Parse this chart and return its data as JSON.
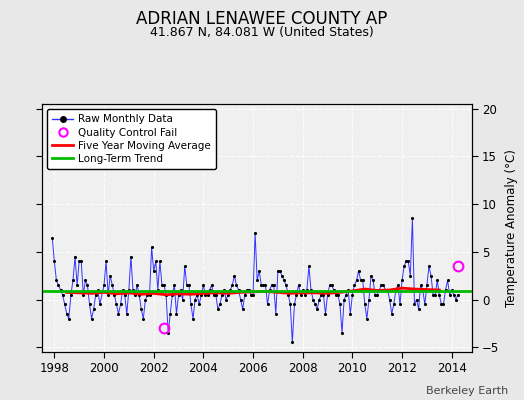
{
  "title": "ADRIAN LENAWEE COUNTY AP",
  "subtitle": "41.867 N, 84.081 W (United States)",
  "ylabel": "Temperature Anomaly (°C)",
  "footer": "Berkeley Earth",
  "ylim": [
    -5.5,
    20.5
  ],
  "yticks": [
    -5,
    0,
    5,
    10,
    15,
    20
  ],
  "xlim": [
    1997.5,
    2014.8
  ],
  "xticks": [
    1998,
    2000,
    2002,
    2004,
    2006,
    2008,
    2010,
    2012,
    2014
  ],
  "bg_color": "#e8e8e8",
  "plot_bg_color": "#f0f0f0",
  "grid_color": "#d0d0d0",
  "raw_color": "#3333ff",
  "ma_color": "#ff0000",
  "trend_color": "#00bb00",
  "qc_fail_color": "#ff00ff",
  "trend_value": 0.85,
  "raw_data": [
    [
      1997.917,
      6.5
    ],
    [
      1998.0,
      4.0
    ],
    [
      1998.083,
      2.0
    ],
    [
      1998.167,
      1.5
    ],
    [
      1998.25,
      1.0
    ],
    [
      1998.333,
      0.5
    ],
    [
      1998.417,
      -0.5
    ],
    [
      1998.5,
      -1.5
    ],
    [
      1998.583,
      -2.0
    ],
    [
      1998.667,
      0.5
    ],
    [
      1998.75,
      2.0
    ],
    [
      1998.833,
      4.5
    ],
    [
      1998.917,
      1.5
    ],
    [
      1999.0,
      4.0
    ],
    [
      1999.083,
      4.0
    ],
    [
      1999.167,
      0.5
    ],
    [
      1999.25,
      2.0
    ],
    [
      1999.333,
      1.5
    ],
    [
      1999.417,
      -0.5
    ],
    [
      1999.5,
      -2.0
    ],
    [
      1999.583,
      -1.0
    ],
    [
      1999.667,
      0.5
    ],
    [
      1999.75,
      1.0
    ],
    [
      1999.833,
      -0.5
    ],
    [
      2000.0,
      1.5
    ],
    [
      2000.083,
      4.0
    ],
    [
      2000.167,
      0.5
    ],
    [
      2000.25,
      2.5
    ],
    [
      2000.333,
      1.5
    ],
    [
      2000.417,
      0.5
    ],
    [
      2000.5,
      -0.5
    ],
    [
      2000.583,
      -1.5
    ],
    [
      2000.667,
      -0.5
    ],
    [
      2000.75,
      1.0
    ],
    [
      2000.833,
      0.5
    ],
    [
      2000.917,
      -1.5
    ],
    [
      2001.0,
      1.0
    ],
    [
      2001.083,
      4.5
    ],
    [
      2001.167,
      1.0
    ],
    [
      2001.25,
      0.5
    ],
    [
      2001.333,
      1.5
    ],
    [
      2001.417,
      0.5
    ],
    [
      2001.5,
      -1.0
    ],
    [
      2001.583,
      -2.0
    ],
    [
      2001.667,
      0.0
    ],
    [
      2001.75,
      0.5
    ],
    [
      2001.833,
      0.5
    ],
    [
      2001.917,
      5.5
    ],
    [
      2002.0,
      3.0
    ],
    [
      2002.083,
      4.0
    ],
    [
      2002.167,
      1.0
    ],
    [
      2002.25,
      4.0
    ],
    [
      2002.333,
      1.5
    ],
    [
      2002.417,
      1.5
    ],
    [
      2002.5,
      0.5
    ],
    [
      2002.583,
      -3.5
    ],
    [
      2002.667,
      -1.5
    ],
    [
      2002.75,
      0.5
    ],
    [
      2002.833,
      1.5
    ],
    [
      2002.917,
      -1.5
    ],
    [
      2003.0,
      0.5
    ],
    [
      2003.083,
      1.0
    ],
    [
      2003.167,
      0.0
    ],
    [
      2003.25,
      3.5
    ],
    [
      2003.333,
      1.5
    ],
    [
      2003.417,
      1.5
    ],
    [
      2003.5,
      -0.5
    ],
    [
      2003.583,
      -2.0
    ],
    [
      2003.667,
      0.0
    ],
    [
      2003.75,
      0.5
    ],
    [
      2003.833,
      -0.5
    ],
    [
      2003.917,
      0.5
    ],
    [
      2004.0,
      1.5
    ],
    [
      2004.083,
      0.5
    ],
    [
      2004.167,
      0.5
    ],
    [
      2004.25,
      1.0
    ],
    [
      2004.333,
      1.5
    ],
    [
      2004.417,
      0.5
    ],
    [
      2004.5,
      0.5
    ],
    [
      2004.583,
      -1.0
    ],
    [
      2004.667,
      -0.5
    ],
    [
      2004.75,
      0.5
    ],
    [
      2004.833,
      1.0
    ],
    [
      2004.917,
      0.0
    ],
    [
      2005.0,
      0.5
    ],
    [
      2005.083,
      1.0
    ],
    [
      2005.167,
      1.5
    ],
    [
      2005.25,
      2.5
    ],
    [
      2005.333,
      1.5
    ],
    [
      2005.417,
      1.0
    ],
    [
      2005.5,
      0.0
    ],
    [
      2005.583,
      -1.0
    ],
    [
      2005.667,
      0.5
    ],
    [
      2005.75,
      1.0
    ],
    [
      2005.833,
      1.0
    ],
    [
      2005.917,
      0.5
    ],
    [
      2006.0,
      0.5
    ],
    [
      2006.083,
      7.0
    ],
    [
      2006.167,
      2.0
    ],
    [
      2006.25,
      3.0
    ],
    [
      2006.333,
      1.5
    ],
    [
      2006.417,
      1.5
    ],
    [
      2006.5,
      1.5
    ],
    [
      2006.583,
      -0.5
    ],
    [
      2006.667,
      1.0
    ],
    [
      2006.75,
      1.5
    ],
    [
      2006.833,
      1.5
    ],
    [
      2006.917,
      -1.5
    ],
    [
      2007.0,
      3.0
    ],
    [
      2007.083,
      3.0
    ],
    [
      2007.167,
      2.5
    ],
    [
      2007.25,
      2.0
    ],
    [
      2007.333,
      1.5
    ],
    [
      2007.417,
      0.5
    ],
    [
      2007.5,
      -0.5
    ],
    [
      2007.583,
      -4.5
    ],
    [
      2007.667,
      -0.5
    ],
    [
      2007.75,
      0.5
    ],
    [
      2007.833,
      1.5
    ],
    [
      2007.917,
      0.5
    ],
    [
      2008.0,
      1.0
    ],
    [
      2008.083,
      0.5
    ],
    [
      2008.167,
      1.0
    ],
    [
      2008.25,
      3.5
    ],
    [
      2008.333,
      1.0
    ],
    [
      2008.417,
      0.0
    ],
    [
      2008.5,
      -0.5
    ],
    [
      2008.583,
      -1.0
    ],
    [
      2008.667,
      0.0
    ],
    [
      2008.75,
      0.5
    ],
    [
      2008.833,
      0.5
    ],
    [
      2008.917,
      -1.5
    ],
    [
      2009.0,
      0.5
    ],
    [
      2009.083,
      1.5
    ],
    [
      2009.167,
      1.5
    ],
    [
      2009.25,
      1.0
    ],
    [
      2009.333,
      0.5
    ],
    [
      2009.417,
      0.5
    ],
    [
      2009.5,
      -0.5
    ],
    [
      2009.583,
      -3.5
    ],
    [
      2009.667,
      0.0
    ],
    [
      2009.75,
      0.5
    ],
    [
      2009.833,
      1.0
    ],
    [
      2009.917,
      -1.5
    ],
    [
      2010.0,
      0.5
    ],
    [
      2010.083,
      1.5
    ],
    [
      2010.167,
      2.0
    ],
    [
      2010.25,
      3.0
    ],
    [
      2010.333,
      2.0
    ],
    [
      2010.417,
      2.0
    ],
    [
      2010.5,
      -0.5
    ],
    [
      2010.583,
      -2.0
    ],
    [
      2010.667,
      0.0
    ],
    [
      2010.75,
      2.5
    ],
    [
      2010.833,
      2.0
    ],
    [
      2010.917,
      0.5
    ],
    [
      2011.0,
      0.5
    ],
    [
      2011.083,
      1.0
    ],
    [
      2011.167,
      1.5
    ],
    [
      2011.25,
      1.5
    ],
    [
      2011.333,
      1.0
    ],
    [
      2011.417,
      1.0
    ],
    [
      2011.5,
      0.0
    ],
    [
      2011.583,
      -1.5
    ],
    [
      2011.667,
      -0.5
    ],
    [
      2011.75,
      1.0
    ],
    [
      2011.833,
      1.5
    ],
    [
      2011.917,
      -0.5
    ],
    [
      2012.0,
      2.0
    ],
    [
      2012.083,
      3.5
    ],
    [
      2012.167,
      4.0
    ],
    [
      2012.25,
      4.0
    ],
    [
      2012.333,
      2.5
    ],
    [
      2012.417,
      8.5
    ],
    [
      2012.5,
      -0.5
    ],
    [
      2012.583,
      0.0
    ],
    [
      2012.667,
      -1.0
    ],
    [
      2012.75,
      1.5
    ],
    [
      2012.833,
      1.0
    ],
    [
      2012.917,
      -0.5
    ],
    [
      2013.0,
      1.5
    ],
    [
      2013.083,
      3.5
    ],
    [
      2013.167,
      2.5
    ],
    [
      2013.25,
      0.5
    ],
    [
      2013.333,
      0.5
    ],
    [
      2013.417,
      2.0
    ],
    [
      2013.5,
      0.5
    ],
    [
      2013.583,
      -0.5
    ],
    [
      2013.667,
      -0.5
    ],
    [
      2013.75,
      1.0
    ],
    [
      2013.833,
      2.0
    ],
    [
      2013.917,
      0.5
    ],
    [
      2014.0,
      1.0
    ],
    [
      2014.083,
      0.5
    ],
    [
      2014.167,
      0.0
    ],
    [
      2014.25,
      0.5
    ]
  ],
  "ma_data": [
    [
      1998.5,
      0.75
    ],
    [
      1999.0,
      0.7
    ],
    [
      1999.5,
      0.65
    ],
    [
      2000.0,
      0.75
    ],
    [
      2000.5,
      0.6
    ],
    [
      2001.0,
      0.7
    ],
    [
      2001.5,
      0.55
    ],
    [
      2002.0,
      0.65
    ],
    [
      2002.5,
      0.5
    ],
    [
      2003.0,
      0.6
    ],
    [
      2003.5,
      0.55
    ],
    [
      2004.0,
      0.65
    ],
    [
      2004.5,
      0.7
    ],
    [
      2005.0,
      0.65
    ],
    [
      2005.5,
      0.75
    ],
    [
      2006.0,
      0.8
    ],
    [
      2006.5,
      0.85
    ],
    [
      2007.0,
      0.75
    ],
    [
      2007.5,
      0.65
    ],
    [
      2008.0,
      0.7
    ],
    [
      2008.5,
      0.7
    ],
    [
      2009.0,
      0.65
    ],
    [
      2009.5,
      0.75
    ],
    [
      2010.0,
      0.9
    ],
    [
      2010.5,
      1.1
    ],
    [
      2011.0,
      0.95
    ],
    [
      2011.5,
      1.0
    ],
    [
      2012.0,
      1.2
    ],
    [
      2012.5,
      1.1
    ],
    [
      2013.0,
      1.05
    ],
    [
      2013.5,
      1.0
    ]
  ],
  "qc_fail_points": [
    [
      2002.417,
      -3.0
    ],
    [
      2014.25,
      3.5
    ]
  ]
}
